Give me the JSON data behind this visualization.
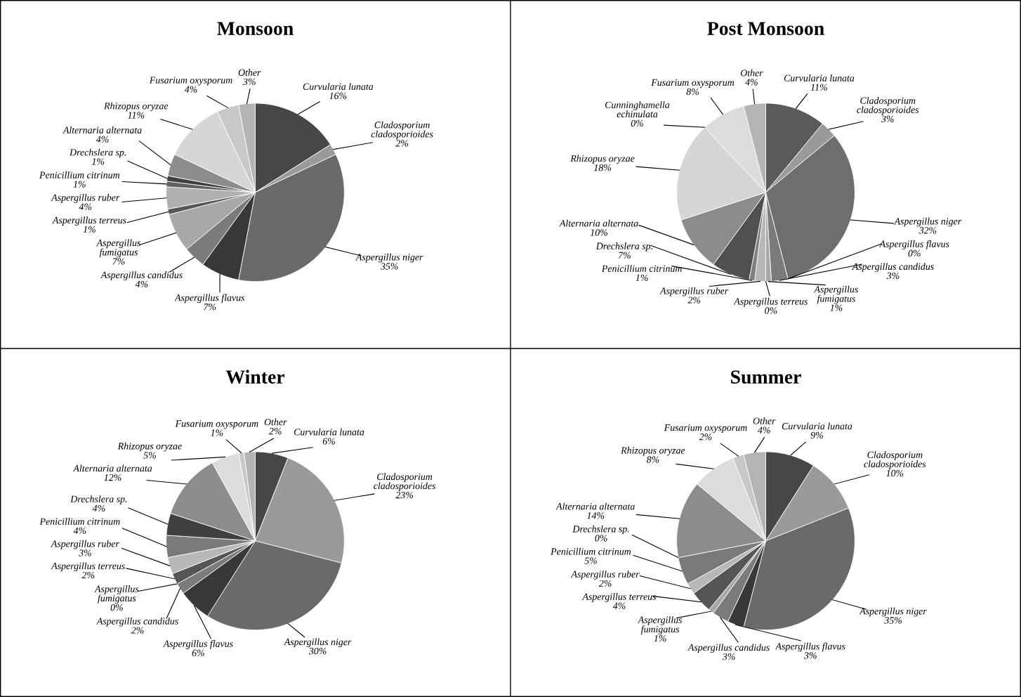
{
  "chart_data": [
    {
      "type": "pie",
      "title": "Monsoon",
      "categories": [
        "Curvularia lunata",
        "Cladosporium cladosporioides",
        "Aspergillus niger",
        "Aspergillus flavus",
        "Aspergillus candidus",
        "Aspergillus fumigatus",
        "Aspergillus terreus",
        "Aspergillus ruber",
        "Penicillium citrinum",
        "Drechslera sp.",
        "Alternaria alternata",
        "Rhizopus oryzae",
        "Fusarium oxysporum",
        "Other"
      ],
      "values": [
        16,
        2,
        35,
        7,
        4,
        7,
        1,
        4,
        1,
        1,
        4,
        11,
        4,
        3
      ],
      "value_labels": [
        "16%",
        "2%",
        "35%",
        "7%",
        "4%",
        "7%",
        "1%",
        "4%",
        "1%",
        "1%",
        "4%",
        "11%",
        "4%",
        "3%"
      ],
      "colors": [
        "#474747",
        "#9a9a9a",
        "#6a6a6a",
        "#383838",
        "#7b7b7b",
        "#a8a8a8",
        "#555555",
        "#b0b0b0",
        "#606060",
        "#404040",
        "#8c8c8c",
        "#d6d6d6",
        "#c8c8c8",
        "#b4b4b4"
      ]
    },
    {
      "type": "pie",
      "title": "Post Monsoon",
      "categories": [
        "Curvularia lunata",
        "Cladosporium cladosporioides",
        "Aspergillus niger",
        "Aspergillus flavus",
        "Aspergillus candidus",
        "Aspergillus fumigatus",
        "Aspergillus terreus",
        "Aspergillus ruber",
        "Penicillium citrinum",
        "Drechslera sp.",
        "Alternaria alternata",
        "Rhizopus oryzae",
        "Cunninghamella echinulata",
        "Fusarium oxysporum",
        "Other"
      ],
      "values": [
        11,
        3,
        32,
        0,
        3,
        1,
        0,
        2,
        1,
        7,
        10,
        18,
        0,
        8,
        4
      ],
      "value_labels": [
        "11%",
        "3%",
        "32%",
        "0%",
        "3%",
        "1%",
        "0%",
        "2%",
        "1%",
        "7%",
        "10%",
        "18%",
        "0%",
        "8%",
        "4%"
      ],
      "colors": [
        "#5a5a5a",
        "#9a9a9a",
        "#6e6e6e",
        "#383838",
        "#7b7b7b",
        "#a8a8a8",
        "#555555",
        "#b8b8b8",
        "#808080",
        "#505050",
        "#8c8c8c",
        "#d6d6d6",
        "#c0c0c0",
        "#dcdcdc",
        "#b4b4b4"
      ]
    },
    {
      "type": "pie",
      "title": "Winter",
      "categories": [
        "Curvularia lunata",
        "Cladosporium cladosporioides",
        "Aspergillus niger",
        "Aspergillus flavus",
        "Aspergillus candidus",
        "Aspergillus fumigatus",
        "Aspergillus terreus",
        "Aspergillus ruber",
        "Penicillium citrinum",
        "Drechslera sp.",
        "Alternaria alternata",
        "Rhizopus oryzae",
        "Fusarium oxysporum",
        "Other"
      ],
      "values": [
        6,
        23,
        30,
        6,
        2,
        0,
        2,
        3,
        4,
        4,
        12,
        5,
        1,
        2
      ],
      "value_labels": [
        "6%",
        "23%",
        "30%",
        "6%",
        "2%",
        "0%",
        "2%",
        "3%",
        "4%",
        "4%",
        "12%",
        "5%",
        "1%",
        "2%"
      ],
      "colors": [
        "#474747",
        "#9a9a9a",
        "#6a6a6a",
        "#383838",
        "#7b7b7b",
        "#a8a8a8",
        "#555555",
        "#b8b8b8",
        "#7a7a7a",
        "#404040",
        "#8c8c8c",
        "#dcdcdc",
        "#c8c8c8",
        "#b4b4b4"
      ]
    },
    {
      "type": "pie",
      "title": "Summer",
      "categories": [
        "Curvularia lunata",
        "Cladosporium cladosporioides",
        "Aspergillus niger",
        "Aspergillus flavus",
        "Aspergillus candidus",
        "Aspergillus fumigatus",
        "Aspergillus terreus",
        "Aspergillus ruber",
        "Penicillium citrinum",
        "Drechslera sp.",
        "Alternaria alternata",
        "Rhizopus oryzae",
        "Fusarium oxysporum",
        "Other"
      ],
      "values": [
        9,
        10,
        35,
        3,
        3,
        1,
        4,
        2,
        5,
        0,
        14,
        8,
        2,
        4
      ],
      "value_labels": [
        "9%",
        "10%",
        "35%",
        "3%",
        "3%",
        "1%",
        "4%",
        "2%",
        "5%",
        "0%",
        "14%",
        "8%",
        "2%",
        "4%"
      ],
      "colors": [
        "#474747",
        "#9a9a9a",
        "#6a6a6a",
        "#383838",
        "#7b7b7b",
        "#a8a8a8",
        "#555555",
        "#b8b8b8",
        "#7a7a7a",
        "#404040",
        "#8c8c8c",
        "#dcdcdc",
        "#c8c8c8",
        "#b4b4b4"
      ]
    }
  ]
}
